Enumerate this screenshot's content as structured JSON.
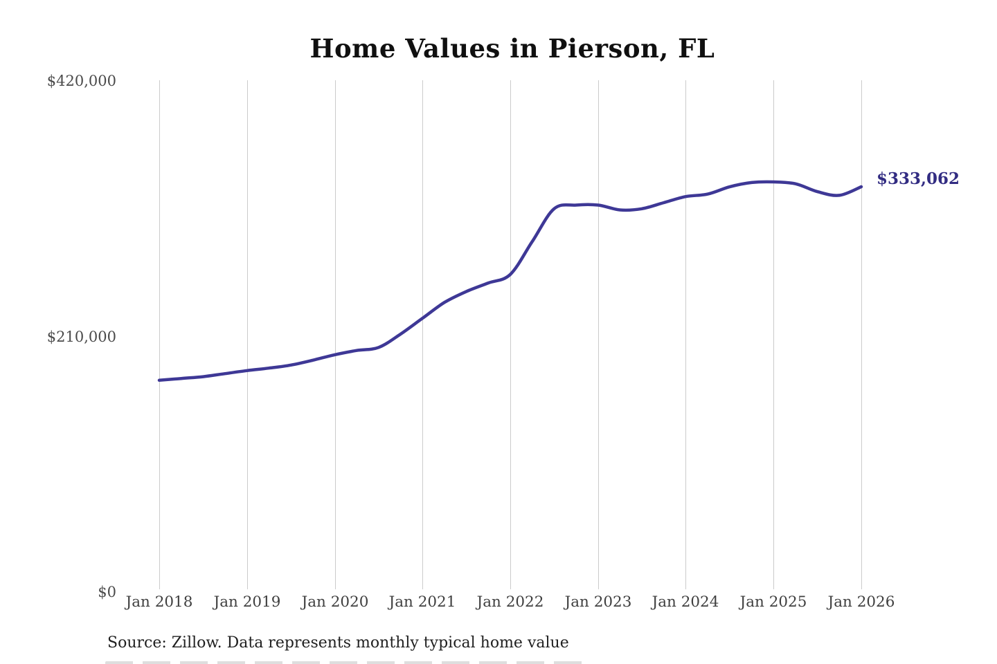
{
  "colors": {
    "background": "#ffffff",
    "line": "#3e3896",
    "value_label": "#322c82",
    "grid": "#cbcbcb",
    "title_text": "#101010",
    "y_axis_text": "#4a4a4a",
    "x_axis_text": "#3f3f3f",
    "source_text": "#1f1f1f"
  },
  "chart_data": {
    "type": "line",
    "title": "Home Values in Pierson, FL",
    "series_name": "Monthly typical home value",
    "source_note": "Source: Zillow. Data represents monthly typical home value",
    "end_label": "$333,062",
    "final_value": 333062,
    "xlabel": "",
    "ylabel": "",
    "ylim": [
      0,
      420000
    ],
    "y_tick_labels": [
      "$420,000",
      "$210,000",
      "$0"
    ],
    "y_tick_values": [
      420000,
      210000,
      0
    ],
    "x_tick_labels": [
      "Jan 2018",
      "Jan 2019",
      "Jan 2020",
      "Jan 2021",
      "Jan 2022",
      "Jan 2023",
      "Jan 2024",
      "Jan 2025",
      "Jan 2026"
    ],
    "grid": "vertical-only",
    "legend": "none",
    "x_unit": "decimal_year",
    "x": [
      2018.0,
      2018.25,
      2018.5,
      2018.75,
      2019.0,
      2019.25,
      2019.5,
      2019.75,
      2020.0,
      2020.25,
      2020.5,
      2020.75,
      2021.0,
      2021.25,
      2021.5,
      2021.75,
      2022.0,
      2022.25,
      2022.5,
      2022.75,
      2023.0,
      2023.25,
      2023.5,
      2023.75,
      2024.0,
      2024.25,
      2024.5,
      2024.75,
      2025.0,
      2025.25,
      2025.5,
      2025.75,
      2026.0
    ],
    "values": [
      174000,
      175500,
      177000,
      179500,
      182000,
      184000,
      186500,
      190500,
      195000,
      198500,
      201000,
      212000,
      225000,
      238000,
      247000,
      254000,
      261000,
      288000,
      315000,
      318000,
      318000,
      314000,
      315000,
      320000,
      325000,
      327000,
      333000,
      336500,
      337000,
      335500,
      329000,
      326000,
      333062
    ]
  }
}
